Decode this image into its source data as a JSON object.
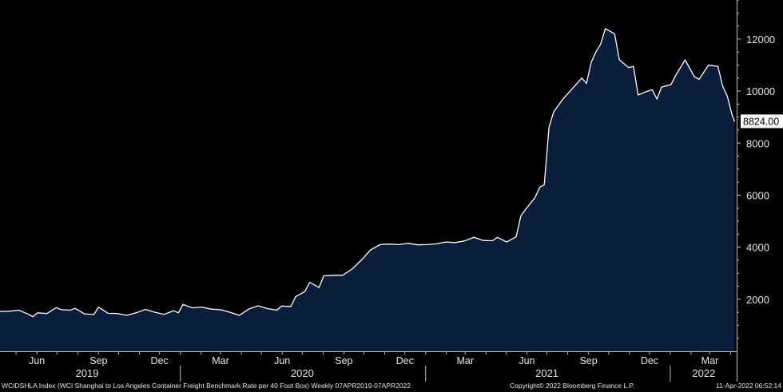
{
  "chart_data": {
    "type": "area",
    "title": "",
    "xlabel": "",
    "ylabel": "",
    "ylim": [
      0,
      13500
    ],
    "xlim": [
      "2019-04-07",
      "2022-04-10"
    ],
    "y_ticks": [
      "2000",
      "4000",
      "6000",
      "8000",
      "10000",
      "12000"
    ],
    "y_tick_values": [
      2000,
      4000,
      6000,
      8000,
      10000,
      12000
    ],
    "month_ticks": [
      {
        "date": "2019-06-01",
        "label": "Jun"
      },
      {
        "date": "2019-09-01",
        "label": "Sep"
      },
      {
        "date": "2019-12-01",
        "label": "Dec"
      },
      {
        "date": "2020-03-01",
        "label": "Mar"
      },
      {
        "date": "2020-06-01",
        "label": "Jun"
      },
      {
        "date": "2020-09-01",
        "label": "Sep"
      },
      {
        "date": "2020-12-01",
        "label": "Dec"
      },
      {
        "date": "2021-03-01",
        "label": "Mar"
      },
      {
        "date": "2021-06-01",
        "label": "Jun"
      },
      {
        "date": "2021-09-01",
        "label": "Sep"
      },
      {
        "date": "2021-12-01",
        "label": "Dec"
      },
      {
        "date": "2022-03-01",
        "label": "Mar"
      }
    ],
    "year_labels": [
      {
        "label": "2019",
        "center": "2019-08-15"
      },
      {
        "label": "2020",
        "center": "2020-07-01"
      },
      {
        "label": "2021",
        "center": "2021-07-01"
      },
      {
        "label": "2022",
        "center": "2022-02-20"
      }
    ],
    "year_separators": [
      "2020-01-01",
      "2021-01-01",
      "2022-01-01"
    ],
    "last_value_label": "8824.00",
    "series": [
      {
        "fill_color": "#0a1e3c",
        "line_color": "#ffffff",
        "points": [
          [
            "2019-04-07",
            1530
          ],
          [
            "2019-04-21",
            1540
          ],
          [
            "2019-05-05",
            1580
          ],
          [
            "2019-05-19",
            1430
          ],
          [
            "2019-05-26",
            1330
          ],
          [
            "2019-06-02",
            1480
          ],
          [
            "2019-06-16",
            1450
          ],
          [
            "2019-06-30",
            1680
          ],
          [
            "2019-07-07",
            1600
          ],
          [
            "2019-07-21",
            1580
          ],
          [
            "2019-07-28",
            1650
          ],
          [
            "2019-08-11",
            1440
          ],
          [
            "2019-08-25",
            1410
          ],
          [
            "2019-09-01",
            1700
          ],
          [
            "2019-09-15",
            1460
          ],
          [
            "2019-09-29",
            1450
          ],
          [
            "2019-10-13",
            1380
          ],
          [
            "2019-10-27",
            1480
          ],
          [
            "2019-11-10",
            1610
          ],
          [
            "2019-11-24",
            1500
          ],
          [
            "2019-12-08",
            1420
          ],
          [
            "2019-12-22",
            1560
          ],
          [
            "2019-12-29",
            1480
          ],
          [
            "2020-01-05",
            1800
          ],
          [
            "2020-01-19",
            1670
          ],
          [
            "2020-02-02",
            1700
          ],
          [
            "2020-02-16",
            1620
          ],
          [
            "2020-03-01",
            1600
          ],
          [
            "2020-03-15",
            1500
          ],
          [
            "2020-03-29",
            1380
          ],
          [
            "2020-04-12",
            1620
          ],
          [
            "2020-04-26",
            1750
          ],
          [
            "2020-05-10",
            1640
          ],
          [
            "2020-05-24",
            1580
          ],
          [
            "2020-05-31",
            1740
          ],
          [
            "2020-06-14",
            1720
          ],
          [
            "2020-06-21",
            2100
          ],
          [
            "2020-07-05",
            2300
          ],
          [
            "2020-07-12",
            2650
          ],
          [
            "2020-07-26",
            2450
          ],
          [
            "2020-08-02",
            2900
          ],
          [
            "2020-08-16",
            2920
          ],
          [
            "2020-08-30",
            2920
          ],
          [
            "2020-09-13",
            3150
          ],
          [
            "2020-09-27",
            3500
          ],
          [
            "2020-10-11",
            3900
          ],
          [
            "2020-10-25",
            4100
          ],
          [
            "2020-11-08",
            4120
          ],
          [
            "2020-11-22",
            4100
          ],
          [
            "2020-12-06",
            4150
          ],
          [
            "2020-12-20",
            4090
          ],
          [
            "2021-01-03",
            4100
          ],
          [
            "2021-01-17",
            4130
          ],
          [
            "2021-01-31",
            4200
          ],
          [
            "2021-02-14",
            4180
          ],
          [
            "2021-02-28",
            4240
          ],
          [
            "2021-03-14",
            4380
          ],
          [
            "2021-03-28",
            4260
          ],
          [
            "2021-04-11",
            4250
          ],
          [
            "2021-04-18",
            4380
          ],
          [
            "2021-05-02",
            4200
          ],
          [
            "2021-05-16",
            4400
          ],
          [
            "2021-05-23",
            5200
          ],
          [
            "2021-05-30",
            5450
          ],
          [
            "2021-06-13",
            5900
          ],
          [
            "2021-06-20",
            6300
          ],
          [
            "2021-06-27",
            6400
          ],
          [
            "2021-07-04",
            8600
          ],
          [
            "2021-07-11",
            9200
          ],
          [
            "2021-07-25",
            9700
          ],
          [
            "2021-08-08",
            10100
          ],
          [
            "2021-08-22",
            10500
          ],
          [
            "2021-08-29",
            10300
          ],
          [
            "2021-09-05",
            11100
          ],
          [
            "2021-09-12",
            11500
          ],
          [
            "2021-09-19",
            11800
          ],
          [
            "2021-09-26",
            12400
          ],
          [
            "2021-10-03",
            12300
          ],
          [
            "2021-10-10",
            12200
          ],
          [
            "2021-10-17",
            11200
          ],
          [
            "2021-10-31",
            10900
          ],
          [
            "2021-11-07",
            10950
          ],
          [
            "2021-11-14",
            9850
          ],
          [
            "2021-11-28",
            10000
          ],
          [
            "2021-12-05",
            10050
          ],
          [
            "2021-12-12",
            9700
          ],
          [
            "2021-12-19",
            10150
          ],
          [
            "2022-01-02",
            10250
          ],
          [
            "2022-01-09",
            10600
          ],
          [
            "2022-01-23",
            11200
          ],
          [
            "2022-02-06",
            10550
          ],
          [
            "2022-02-13",
            10450
          ],
          [
            "2022-02-27",
            11000
          ],
          [
            "2022-03-13",
            10950
          ],
          [
            "2022-03-20",
            10200
          ],
          [
            "2022-03-27",
            9800
          ],
          [
            "2022-04-03",
            9100
          ],
          [
            "2022-04-07",
            8824
          ]
        ]
      }
    ]
  },
  "footer": {
    "left": "WCIDSHLA Index (WCI Shanghai to Los Angeles Container Freight Benchmark Rate per 40 Foot Box)  Weekly 07APR2019-07APR2022",
    "middle": "Copyright© 2022 Bloomberg Finance L.P.",
    "right": "11-Apr-2022 06:52:14"
  }
}
